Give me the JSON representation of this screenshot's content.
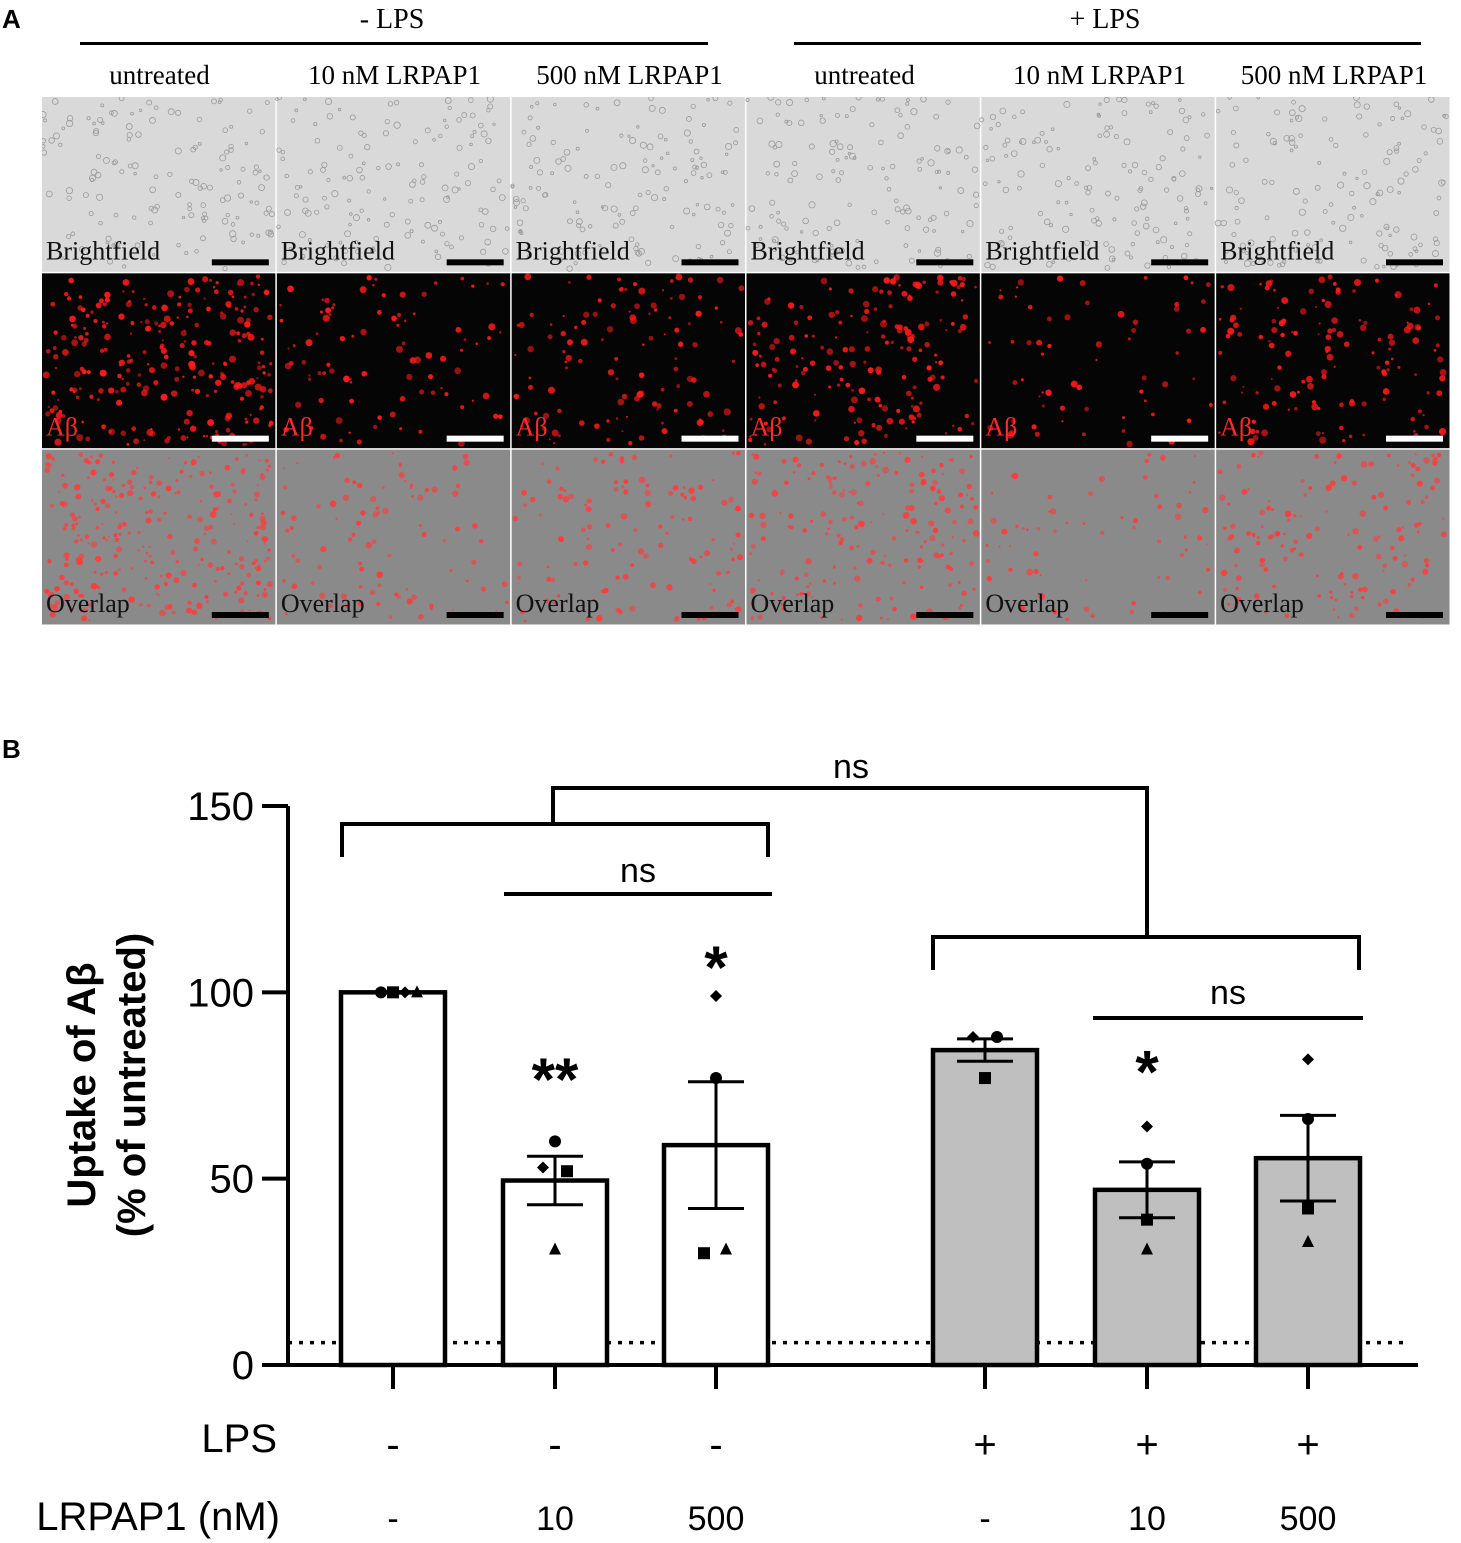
{
  "panel_a": {
    "letter": "A",
    "groups": [
      {
        "label": "- LPS",
        "columns": [
          "untreated",
          "10 nM LRPAP1",
          "500 nM LRPAP1"
        ]
      },
      {
        "label": "+ LPS",
        "columns": [
          "untreated",
          "10 nM LRPAP1",
          "500 nM LRPAP1"
        ]
      }
    ],
    "row_labels": [
      "Brightfield",
      "Aβ",
      "Overlap"
    ],
    "red_density": [
      1.0,
      0.35,
      0.45,
      0.7,
      0.25,
      0.55
    ]
  },
  "panel_b": {
    "letter": "B"
  },
  "chart_data": {
    "type": "bar",
    "ylabel": [
      "Uptake of Aβ",
      "(% of untreated)"
    ],
    "ylim": [
      0,
      150
    ],
    "yticks": [
      0,
      50,
      100,
      150
    ],
    "background_line": 6,
    "row_labels": [
      "LPS",
      "LRPAP1 (nM)"
    ],
    "categories": [
      {
        "lps": "-",
        "lrpap1": "-",
        "mean": 100,
        "sem": 0,
        "points": {
          "circle": 100,
          "diamond": 100,
          "square": 100,
          "triangle": 100
        },
        "sig": "",
        "fill": "#ffffff"
      },
      {
        "lps": "-",
        "lrpap1": "10",
        "mean": 49.5,
        "sem": 6.5,
        "points": {
          "circle": 60,
          "diamond": 53,
          "square": 52,
          "triangle": 31
        },
        "sig": "**",
        "fill": "#ffffff"
      },
      {
        "lps": "-",
        "lrpap1": "500",
        "mean": 59,
        "sem": 17,
        "points": {
          "circle": 77,
          "diamond": 99,
          "square": 30,
          "triangle": 31
        },
        "sig": "*",
        "fill": "#ffffff"
      },
      {
        "lps": "+",
        "lrpap1": "-",
        "mean": 84.5,
        "sem": 3,
        "points": {
          "circle": 88,
          "diamond": 88,
          "square": 77
        },
        "sig": "",
        "fill": "#bfbfbf"
      },
      {
        "lps": "+",
        "lrpap1": "10",
        "mean": 47,
        "sem": 7.5,
        "points": {
          "circle": 54,
          "diamond": 64,
          "square": 39,
          "triangle": 31
        },
        "sig": "*",
        "fill": "#bfbfbf"
      },
      {
        "lps": "+",
        "lrpap1": "500",
        "mean": 55.5,
        "sem": 11.5,
        "points": {
          "circle": 66,
          "diamond": 82,
          "square": 42,
          "triangle": 33
        },
        "sig": "",
        "fill": "#bfbfbf"
      }
    ],
    "comparisons": [
      {
        "label": "ns",
        "type": "line",
        "from": 1,
        "to": 2
      },
      {
        "label": "ns",
        "type": "line",
        "from": 4,
        "to": 5
      },
      {
        "label": "ns",
        "type": "group",
        "groupA": [
          0,
          2
        ],
        "groupB": [
          3,
          5
        ]
      }
    ]
  }
}
